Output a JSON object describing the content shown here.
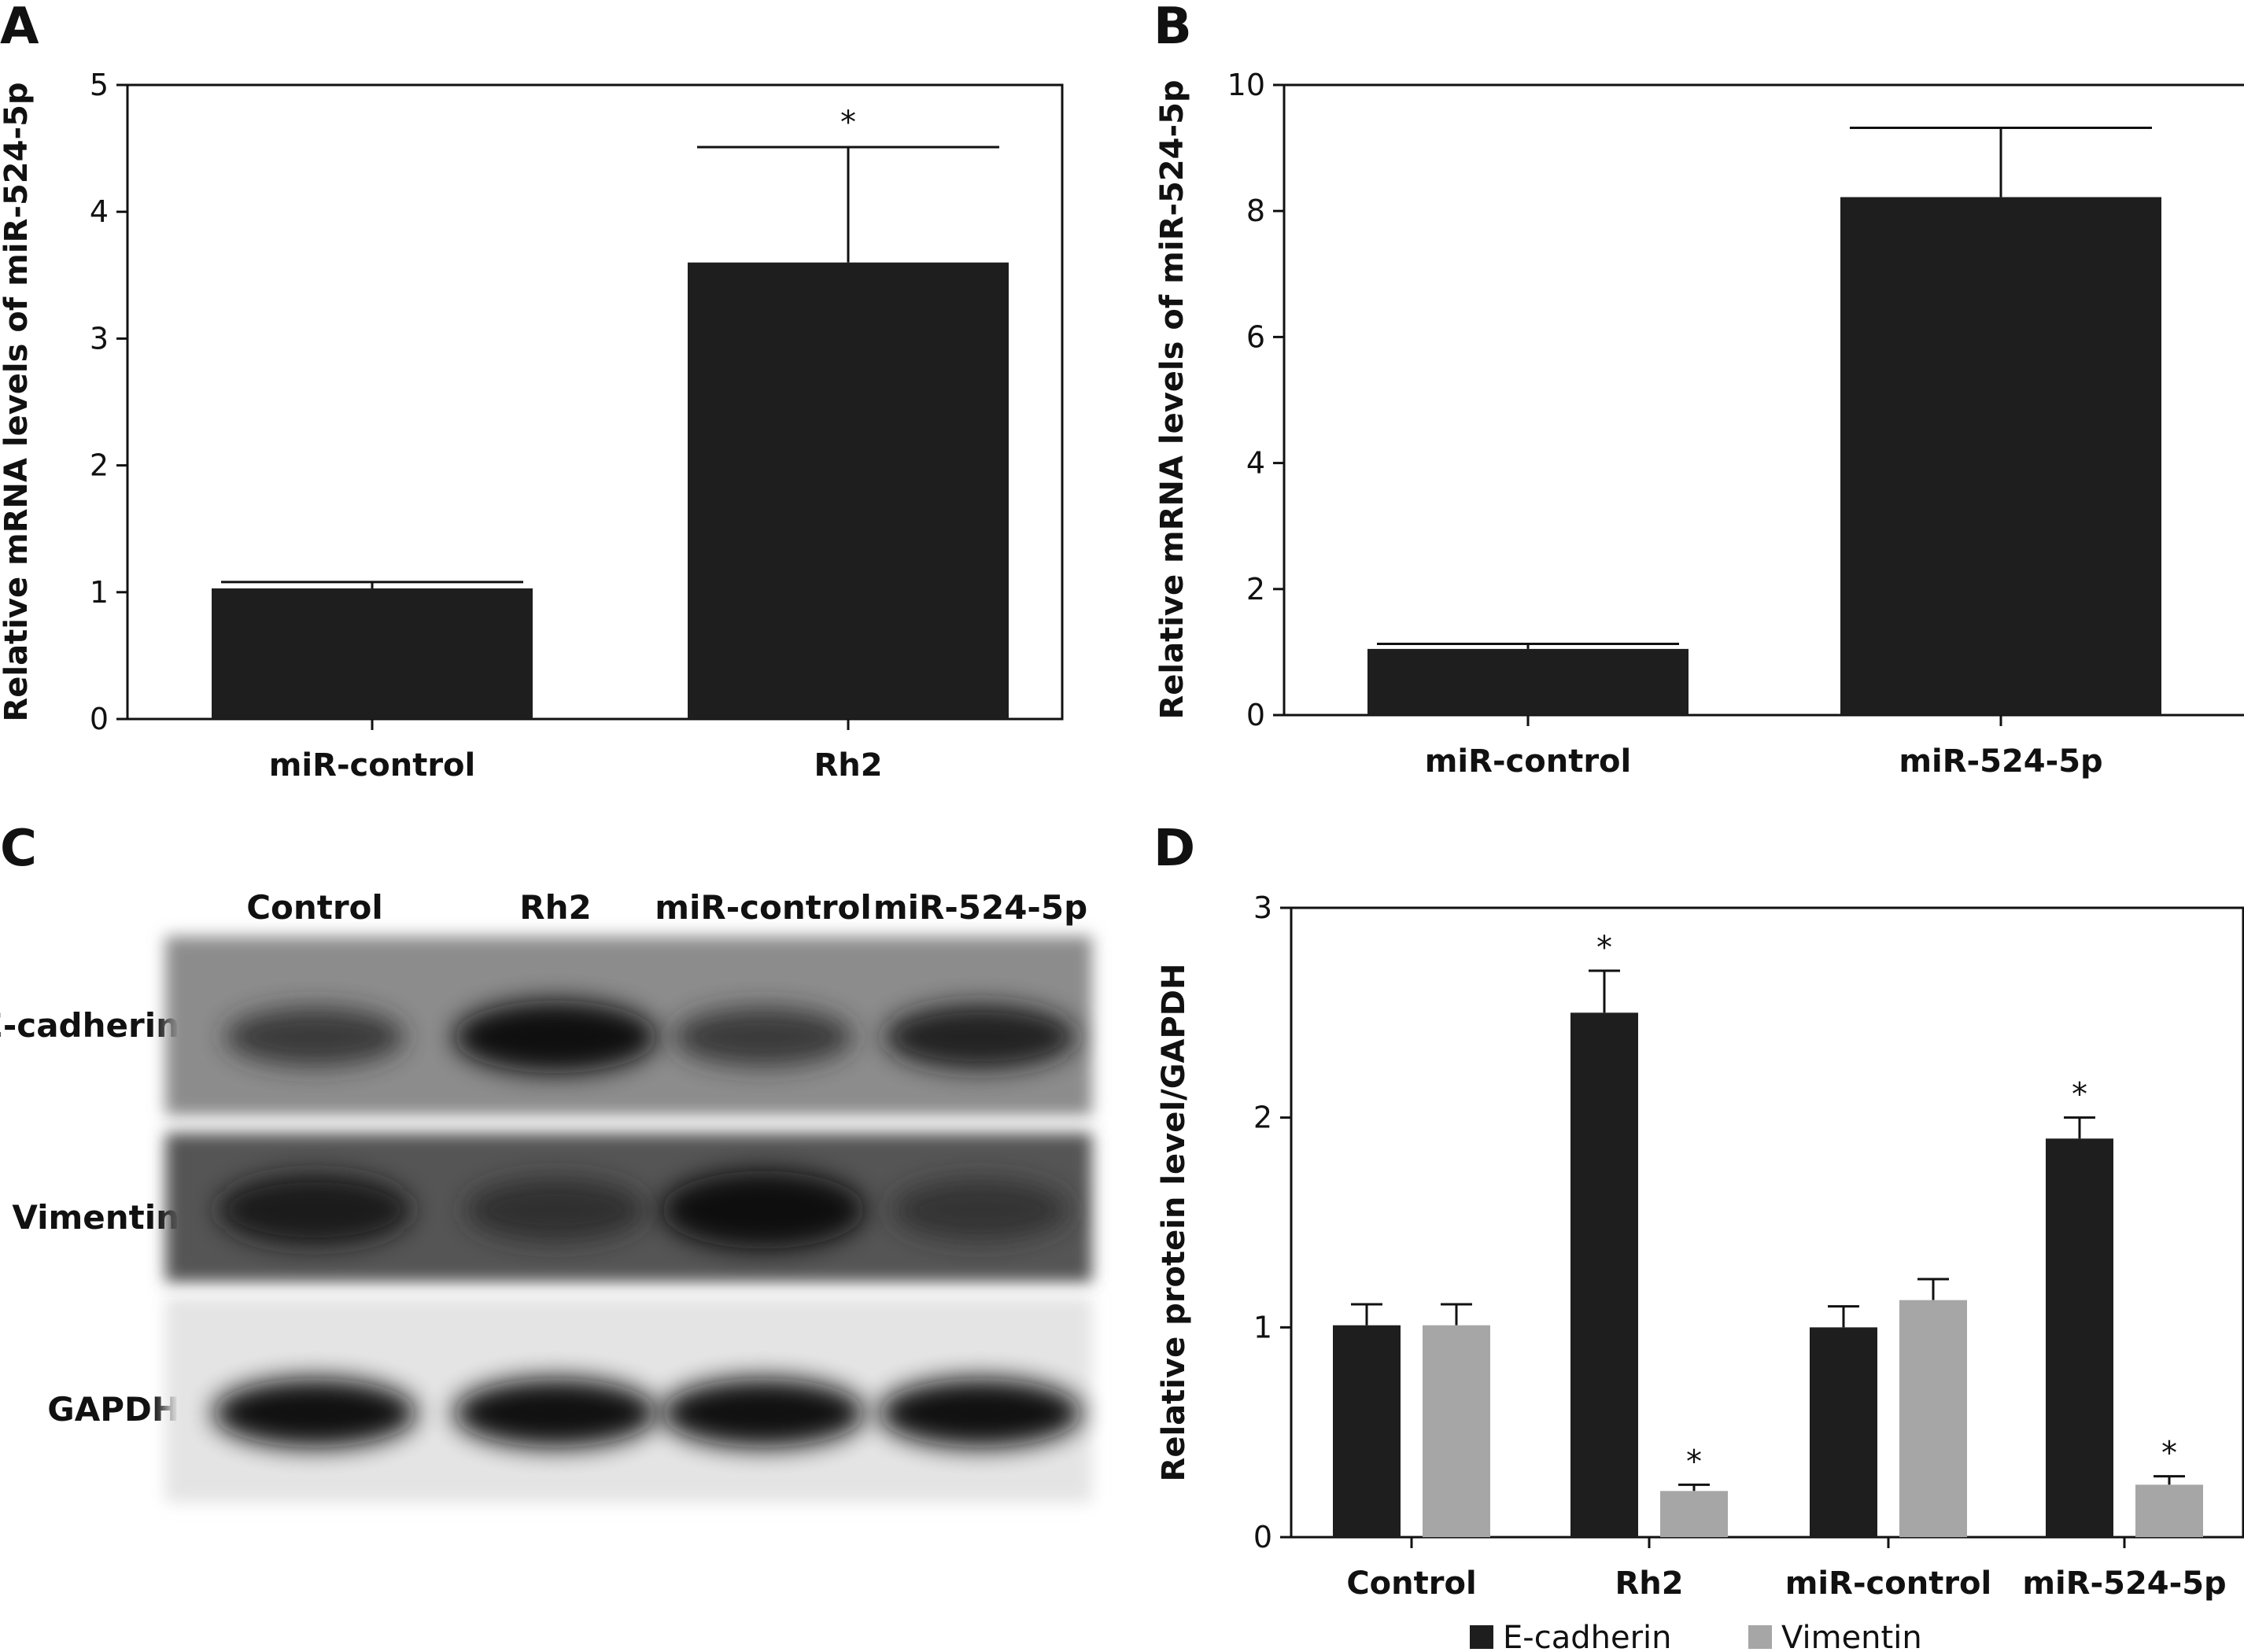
{
  "panels": {
    "A": "A",
    "B": "B",
    "C": "C",
    "D": "D"
  },
  "colors": {
    "e_cadherin": "#1e1e1e",
    "vimentin": "#a6a6a6",
    "axis": "#111111"
  },
  "blot": {
    "columns": [
      "Control",
      "Rh2",
      "miR-control",
      "miR-524-5p"
    ],
    "rows": [
      "E-cadherin",
      "Vimentin",
      "GAPDH"
    ],
    "intensity": {
      "E-cadherin": [
        0.55,
        0.95,
        0.55,
        0.75
      ],
      "Vimentin": [
        0.8,
        0.55,
        0.95,
        0.5
      ],
      "GAPDH": [
        0.95,
        0.95,
        0.95,
        0.95
      ]
    }
  },
  "chart_data": [
    {
      "panel": "A",
      "type": "bar",
      "categories": [
        "miR-control",
        "Rh2"
      ],
      "values": [
        1.03,
        3.6
      ],
      "errors": [
        0.05,
        0.91
      ],
      "significance": [
        "",
        "*"
      ],
      "ylabel": "Relative mRNA levels of miR-524-5p",
      "xlabel": "",
      "ylim": [
        0,
        5
      ],
      "yticks": [
        "0",
        "1",
        "2",
        "3",
        "4",
        "5"
      ],
      "grid": false,
      "series": [
        {
          "values": [
            1.03,
            3.6
          ],
          "color": "#1e1e1e"
        }
      ]
    },
    {
      "panel": "B",
      "type": "bar",
      "categories": [
        "miR-control",
        "miR-524-5p"
      ],
      "values": [
        1.05,
        8.22
      ],
      "errors": [
        0.08,
        1.1
      ],
      "significance": [
        "",
        ""
      ],
      "ylabel": "Relative mRNA levels of miR-524-5p",
      "xlabel": "",
      "ylim": [
        0,
        10
      ],
      "yticks": [
        "0",
        "2",
        "4",
        "6",
        "8",
        "10"
      ],
      "grid": false,
      "series": [
        {
          "values": [
            1.05,
            8.22
          ],
          "color": "#1e1e1e"
        }
      ]
    },
    {
      "panel": "D",
      "type": "bar",
      "categories": [
        "Control",
        "Rh2",
        "miR-control",
        "miR-524-5p"
      ],
      "ylabel": "Relative protein level/GAPDH",
      "xlabel": "",
      "ylim": [
        0,
        3
      ],
      "yticks": [
        "0",
        "1",
        "2",
        "3"
      ],
      "grid": false,
      "legend": "bottom",
      "series": [
        {
          "name": "E-cadherin",
          "color": "#1e1e1e",
          "values": [
            1.01,
            2.5,
            1.0,
            1.9
          ],
          "errors": [
            0.1,
            0.2,
            0.1,
            0.1
          ],
          "significance": [
            "",
            "*",
            "",
            "*"
          ]
        },
        {
          "name": "Vimentin",
          "color": "#a6a6a6",
          "values": [
            1.01,
            0.22,
            1.13,
            0.25
          ],
          "errors": [
            0.1,
            0.03,
            0.1,
            0.04
          ],
          "significance": [
            "",
            "*",
            "",
            "*"
          ]
        }
      ]
    }
  ]
}
